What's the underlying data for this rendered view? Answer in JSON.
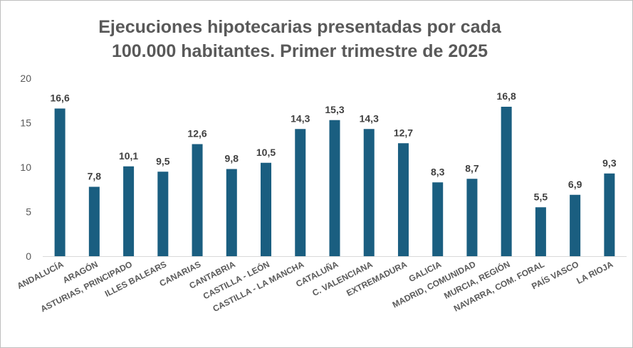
{
  "chart_data": {
    "type": "bar",
    "title_lines": [
      "Ejecuciones hipotecarias presentadas por cada",
      "100.000 habitantes. Primer trimestre de 2025"
    ],
    "categories": [
      "ANDALUCÍA",
      "ARAGÓN",
      "ASTURIAS, PRINCIPADO",
      "ILLES BALEARS",
      "CANARIAS",
      "CANTABRIA",
      "CASTILLA - LEÓN",
      "CASTILLA - LA MANCHA",
      "CATALUÑA",
      "C. VALENCIANA",
      "EXTREMADURA",
      "GALICIA",
      "MADRID, COMUNIDAD",
      "MURCIA, REGIÓN",
      "NAVARRA, COM. FORAL",
      "PAÍS VASCO",
      "LA RIOJA"
    ],
    "values": [
      16.6,
      7.8,
      10.1,
      9.5,
      12.6,
      9.8,
      10.5,
      14.3,
      15.3,
      14.3,
      12.7,
      8.3,
      8.7,
      16.8,
      5.5,
      6.9,
      9.3
    ],
    "value_labels": [
      "16,6",
      "7,8",
      "10,1",
      "9,5",
      "12,6",
      "9,8",
      "10,5",
      "14,3",
      "15,3",
      "14,3",
      "12,7",
      "8,3",
      "8,7",
      "16,8",
      "5,5",
      "6,9",
      "9,3"
    ],
    "yticks": [
      0,
      5,
      10,
      15,
      20
    ],
    "ylim": [
      0,
      20
    ],
    "grid": false,
    "legend": "none",
    "bar_color": "#1a5e80"
  }
}
